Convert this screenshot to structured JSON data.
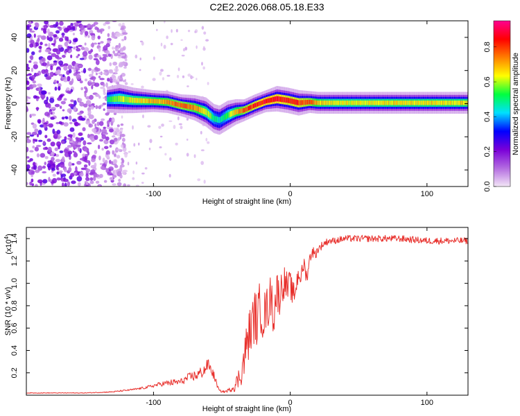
{
  "title": "C2E2.2026.068.05.18.E33",
  "chart_data": [
    {
      "type": "heatmap",
      "title": "C2E2.2026.068.05.18.E33",
      "xlabel": "Height of straight line (km)",
      "ylabel": "Frequency (Hz)",
      "xlim": [
        -193,
        130
      ],
      "ylim": [
        -50,
        50
      ],
      "x_ticks": [
        -100,
        0,
        100
      ],
      "x_tick_labels": [
        "-100",
        "0",
        "100"
      ],
      "y_ticks": [
        -40,
        -20,
        0,
        20,
        40
      ],
      "y_tick_labels": [
        "-40",
        "-20",
        "0",
        "20",
        "40"
      ],
      "colorbar": {
        "label": "Normalized spectral amplitude",
        "range": [
          0,
          0.95
        ],
        "ticks": [
          0,
          0.2,
          0.4,
          0.6,
          0.8
        ],
        "tick_labels": [
          "0.0",
          "0.2",
          "0.4",
          "0.6",
          "0.8"
        ],
        "colors": [
          "#f3e6f6",
          "#b36be0",
          "#7a00d8",
          "#0000ff",
          "#00e0ff",
          "#00ff40",
          "#ffff00",
          "#ff8000",
          "#ff0000",
          "#ff0090"
        ]
      },
      "noise_region_x": [
        -193,
        -130
      ],
      "signal_start_x": -134,
      "signal_trace": {
        "x": [
          -134,
          -125,
          -115,
          -100,
          -90,
          -80,
          -70,
          -62,
          -56,
          -52,
          -46,
          -40,
          -34,
          -26,
          -18,
          -10,
          -2,
          6,
          14,
          20,
          30,
          50,
          80,
          110,
          130
        ],
        "y": [
          2.5,
          3,
          2,
          1.5,
          1,
          -1,
          -2.5,
          -5,
          -9,
          -10,
          -7,
          -5,
          -4,
          -1,
          1.5,
          3,
          2,
          0.5,
          1,
          0.5,
          0.5,
          0.5,
          0.5,
          0.5,
          0.5
        ],
        "halfwidth": [
          3.5,
          4,
          3.5,
          3,
          3,
          3,
          3.5,
          4,
          4,
          4,
          4,
          3.5,
          3,
          3,
          3,
          3.5,
          3.5,
          3.5,
          3,
          3,
          3,
          3,
          3,
          3,
          3
        ],
        "peak_amplitude": [
          0.55,
          0.65,
          0.7,
          0.75,
          0.8,
          0.85,
          0.8,
          0.7,
          0.55,
          0.5,
          0.6,
          0.75,
          0.85,
          0.9,
          0.95,
          0.95,
          0.9,
          0.9,
          0.85,
          0.75,
          0.7,
          0.7,
          0.72,
          0.72,
          0.72
        ]
      }
    },
    {
      "type": "line",
      "xlabel": "Height of straight line (km)",
      "ylabel": "SNR (10 * v/v)",
      "y_scale_label": "(x10",
      "y_scale_exponent": "4",
      "y_scale_suffix": ")",
      "xlim": [
        -193,
        130
      ],
      "ylim": [
        0,
        1.5
      ],
      "x_ticks": [
        -100,
        0,
        100
      ],
      "x_tick_labels": [
        "-100",
        "0",
        "100"
      ],
      "y_ticks": [
        0.2,
        0.4,
        0.6,
        0.8,
        1.0,
        1.2,
        1.4
      ],
      "y_tick_labels": [
        "0.2",
        "0.4",
        "0.6",
        "0.8",
        "1.0",
        "1.2",
        "1.4"
      ],
      "color": "#e8302c",
      "series": [
        {
          "name": "SNR",
          "x": [
            -193,
            -150,
            -130,
            -115,
            -105,
            -95,
            -88,
            -80,
            -74,
            -68,
            -63,
            -60,
            -56,
            -52,
            -48,
            -44,
            -40,
            -36,
            -34,
            -32,
            -30,
            -28,
            -26,
            -24,
            -22,
            -20,
            -18,
            -16,
            -14,
            -12,
            -10,
            -8,
            -6,
            -4,
            -2,
            0,
            2,
            4,
            6,
            8,
            10,
            12,
            14,
            16,
            18,
            20,
            24,
            28,
            32,
            40,
            60,
            80,
            100,
            130
          ],
          "y": [
            0.02,
            0.02,
            0.03,
            0.05,
            0.07,
            0.1,
            0.11,
            0.12,
            0.16,
            0.18,
            0.22,
            0.28,
            0.18,
            0.04,
            0.03,
            0.05,
            0.09,
            0.2,
            0.3,
            0.45,
            0.55,
            0.62,
            0.72,
            0.65,
            0.82,
            0.7,
            0.75,
            0.8,
            0.9,
            0.7,
            0.95,
            0.88,
            0.98,
            1.02,
            0.95,
            1.0,
            0.88,
            0.95,
            1.1,
            1.05,
            1.18,
            1.05,
            1.2,
            1.3,
            1.25,
            1.3,
            1.35,
            1.38,
            1.38,
            1.4,
            1.4,
            1.4,
            1.38,
            1.38
          ],
          "noise": [
            0.003,
            0.003,
            0.005,
            0.008,
            0.012,
            0.02,
            0.03,
            0.03,
            0.04,
            0.05,
            0.06,
            0.05,
            0.04,
            0.01,
            0.01,
            0.02,
            0.06,
            0.12,
            0.16,
            0.2,
            0.22,
            0.22,
            0.24,
            0.24,
            0.24,
            0.22,
            0.2,
            0.2,
            0.2,
            0.2,
            0.18,
            0.18,
            0.16,
            0.14,
            0.14,
            0.12,
            0.12,
            0.1,
            0.1,
            0.08,
            0.08,
            0.07,
            0.06,
            0.06,
            0.05,
            0.04,
            0.035,
            0.03,
            0.03,
            0.03,
            0.03,
            0.03,
            0.03,
            0.03
          ]
        }
      ]
    }
  ]
}
